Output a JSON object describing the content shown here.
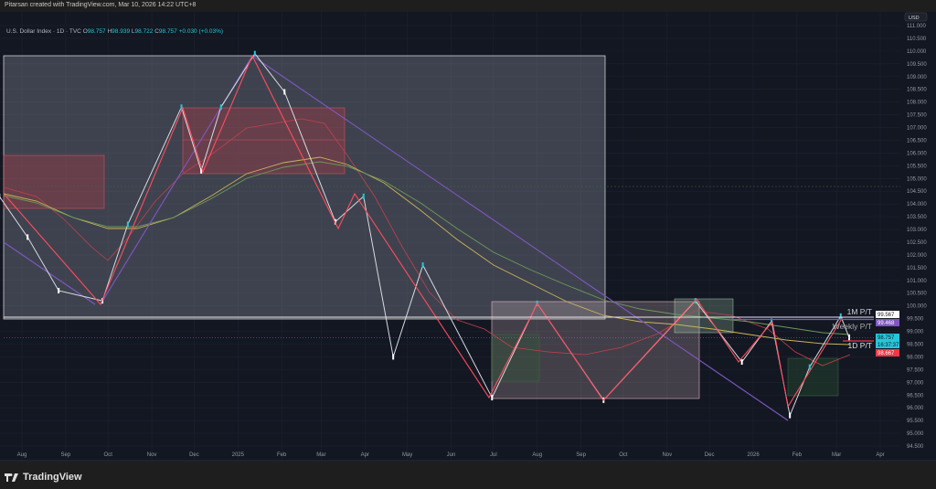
{
  "credit": "Pitarsan created with TradingView.com, Mar 10, 2026 14:22 UTC+8",
  "legend": {
    "symbol": "U.S. Dollar Index · 1D · TVC",
    "open_label": "O",
    "open": "98.757",
    "high_label": "H",
    "high": "98.939",
    "low_label": "L",
    "low": "98.722",
    "close_label": "C",
    "close": "98.757",
    "change": "+0.030 (+0.03%)"
  },
  "currency": "USD",
  "footer_brand": "TradingView",
  "level_labels": {
    "monthly": "1M P/T",
    "weekly": "Weekly P/T",
    "daily": "1D P/T"
  },
  "axis_badges": {
    "monthly": "99.567",
    "weekly": "99.468",
    "last": "98.757",
    "countdown": "16:37:37",
    "daily": "98.667"
  },
  "colors": {
    "background": "#131722",
    "up": "#26c6da",
    "down": "#ffffff",
    "zigzag": "#ff4d5e",
    "trendline": "#7e57c2",
    "weekly": "#7e57c2",
    "monthly": "#ffffff",
    "daily": "#f23645"
  },
  "chart_data": {
    "type": "candlestick",
    "title": "U.S. Dollar Index · 1D · TVC",
    "ylim": [
      94.3,
      111.5
    ],
    "y_ticks": [
      "111.000",
      "110.500",
      "110.000",
      "109.500",
      "109.000",
      "108.500",
      "108.000",
      "107.500",
      "107.000",
      "106.500",
      "106.000",
      "105.500",
      "105.000",
      "104.500",
      "104.000",
      "103.500",
      "103.000",
      "102.500",
      "102.000",
      "101.500",
      "101.000",
      "100.500",
      "100.000",
      "99.500",
      "99.000",
      "98.500",
      "98.000",
      "97.500",
      "97.000",
      "96.500",
      "96.000",
      "95.500",
      "95.000",
      "94.500"
    ],
    "x_ticks": [
      {
        "label": "Aug",
        "date": "2024-08-01"
      },
      {
        "label": "Sep",
        "date": "2024-09-01"
      },
      {
        "label": "Oct",
        "date": "2024-10-01"
      },
      {
        "label": "Nov",
        "date": "2024-11-01"
      },
      {
        "label": "Dec",
        "date": "2024-12-01"
      },
      {
        "label": "2025",
        "date": "2025-01-01"
      },
      {
        "label": "Feb",
        "date": "2025-02-01"
      },
      {
        "label": "Mar",
        "date": "2025-03-01"
      },
      {
        "label": "Apr",
        "date": "2025-04-01"
      },
      {
        "label": "May",
        "date": "2025-05-01"
      },
      {
        "label": "Jun",
        "date": "2025-06-01"
      },
      {
        "label": "Jul",
        "date": "2025-07-01"
      },
      {
        "label": "Aug",
        "date": "2025-08-01"
      },
      {
        "label": "Sep",
        "date": "2025-09-01"
      },
      {
        "label": "Oct",
        "date": "2025-10-01"
      },
      {
        "label": "Nov",
        "date": "2025-11-01"
      },
      {
        "label": "Dec",
        "date": "2025-12-01"
      },
      {
        "label": "2026",
        "date": "2026-01-01"
      },
      {
        "label": "Feb",
        "date": "2026-02-01"
      },
      {
        "label": "Mar",
        "date": "2026-03-01"
      },
      {
        "label": "Apr",
        "date": "2026-04-01"
      }
    ],
    "price_path": [
      {
        "date": "2024-07-16",
        "close": 104.3
      },
      {
        "date": "2024-08-05",
        "close": 102.7
      },
      {
        "date": "2024-08-27",
        "close": 100.6
      },
      {
        "date": "2024-09-27",
        "close": 100.2
      },
      {
        "date": "2024-10-15",
        "close": 103.2
      },
      {
        "date": "2024-11-22",
        "close": 107.8
      },
      {
        "date": "2024-12-06",
        "close": 105.3
      },
      {
        "date": "2024-12-20",
        "close": 107.8
      },
      {
        "date": "2025-01-13",
        "close": 109.9
      },
      {
        "date": "2025-02-03",
        "close": 108.4
      },
      {
        "date": "2025-03-11",
        "close": 103.3
      },
      {
        "date": "2025-03-31",
        "close": 104.3
      },
      {
        "date": "2025-04-21",
        "close": 98.0
      },
      {
        "date": "2025-05-12",
        "close": 101.6
      },
      {
        "date": "2025-06-30",
        "close": 96.4
      },
      {
        "date": "2025-08-01",
        "close": 100.1
      },
      {
        "date": "2025-09-17",
        "close": 96.3
      },
      {
        "date": "2025-11-21",
        "close": 100.2
      },
      {
        "date": "2025-12-24",
        "close": 97.8
      },
      {
        "date": "2026-01-14",
        "close": 99.4
      },
      {
        "date": "2026-01-27",
        "close": 95.7
      },
      {
        "date": "2026-02-10",
        "close": 97.6
      },
      {
        "date": "2026-03-04",
        "close": 99.6
      },
      {
        "date": "2026-03-10",
        "close": 98.757
      }
    ],
    "levels": [
      {
        "label": "1M P/T",
        "value": 99.567
      },
      {
        "label": "Weekly P/T",
        "value": 99.468
      },
      {
        "label": "1D P/T",
        "value": 98.667
      }
    ]
  }
}
